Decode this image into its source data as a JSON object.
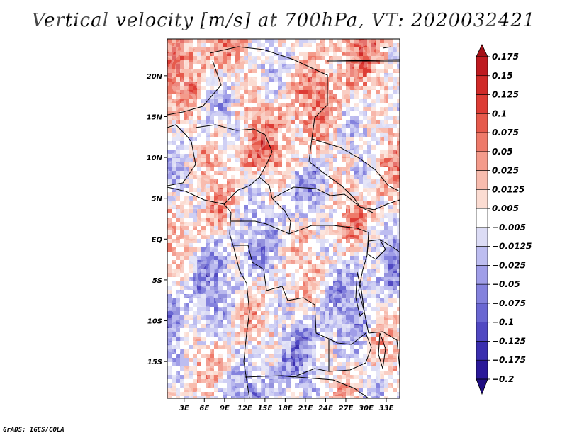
{
  "title": "Vertical velocity [m/s] at 700hPa, VT: 2020032421",
  "footer": "GrADS: IGES/COLA",
  "chart_data": {
    "type": "heatmap",
    "variable": "Vertical velocity",
    "units": "m/s",
    "level": "700hPa",
    "valid_time": "2020032421",
    "x_ticks": [
      "3E",
      "6E",
      "9E",
      "12E",
      "15E",
      "18E",
      "21E",
      "24E",
      "27E",
      "30E",
      "33E"
    ],
    "x_values": [
      3,
      6,
      9,
      12,
      15,
      18,
      21,
      24,
      27,
      30,
      33
    ],
    "y_ticks": [
      "20N",
      "15N",
      "10N",
      "5N",
      "EQ",
      "5S",
      "10S",
      "15S"
    ],
    "y_values": [
      20,
      15,
      10,
      5,
      0,
      -5,
      -10,
      -15
    ],
    "lon_range": [
      0.5,
      35
    ],
    "lat_range": [
      -19.5,
      24.5
    ],
    "colorbar": {
      "labels": [
        "0.175",
        "0.15",
        "0.125",
        "0.1",
        "0.075",
        "0.05",
        "0.025",
        "0.0125",
        "0.005",
        "−0.005",
        "−0.0125",
        "−0.025",
        "−0.05",
        "−0.075",
        "−0.1",
        "−0.125",
        "−0.175",
        "−0.2"
      ],
      "colors": [
        "#a50f15",
        "#be1a1f",
        "#d02a28",
        "#dd3c35",
        "#e65a4c",
        "#ee7a6a",
        "#f49b8b",
        "#f8bcae",
        "#fbdcd2",
        "#ffffff",
        "#dcdcf5",
        "#bdbdf0",
        "#a09ee8",
        "#8482dd",
        "#6a67d2",
        "#5048c2",
        "#3a2eaf",
        "#2a1899",
        "#1f0d80"
      ]
    }
  }
}
